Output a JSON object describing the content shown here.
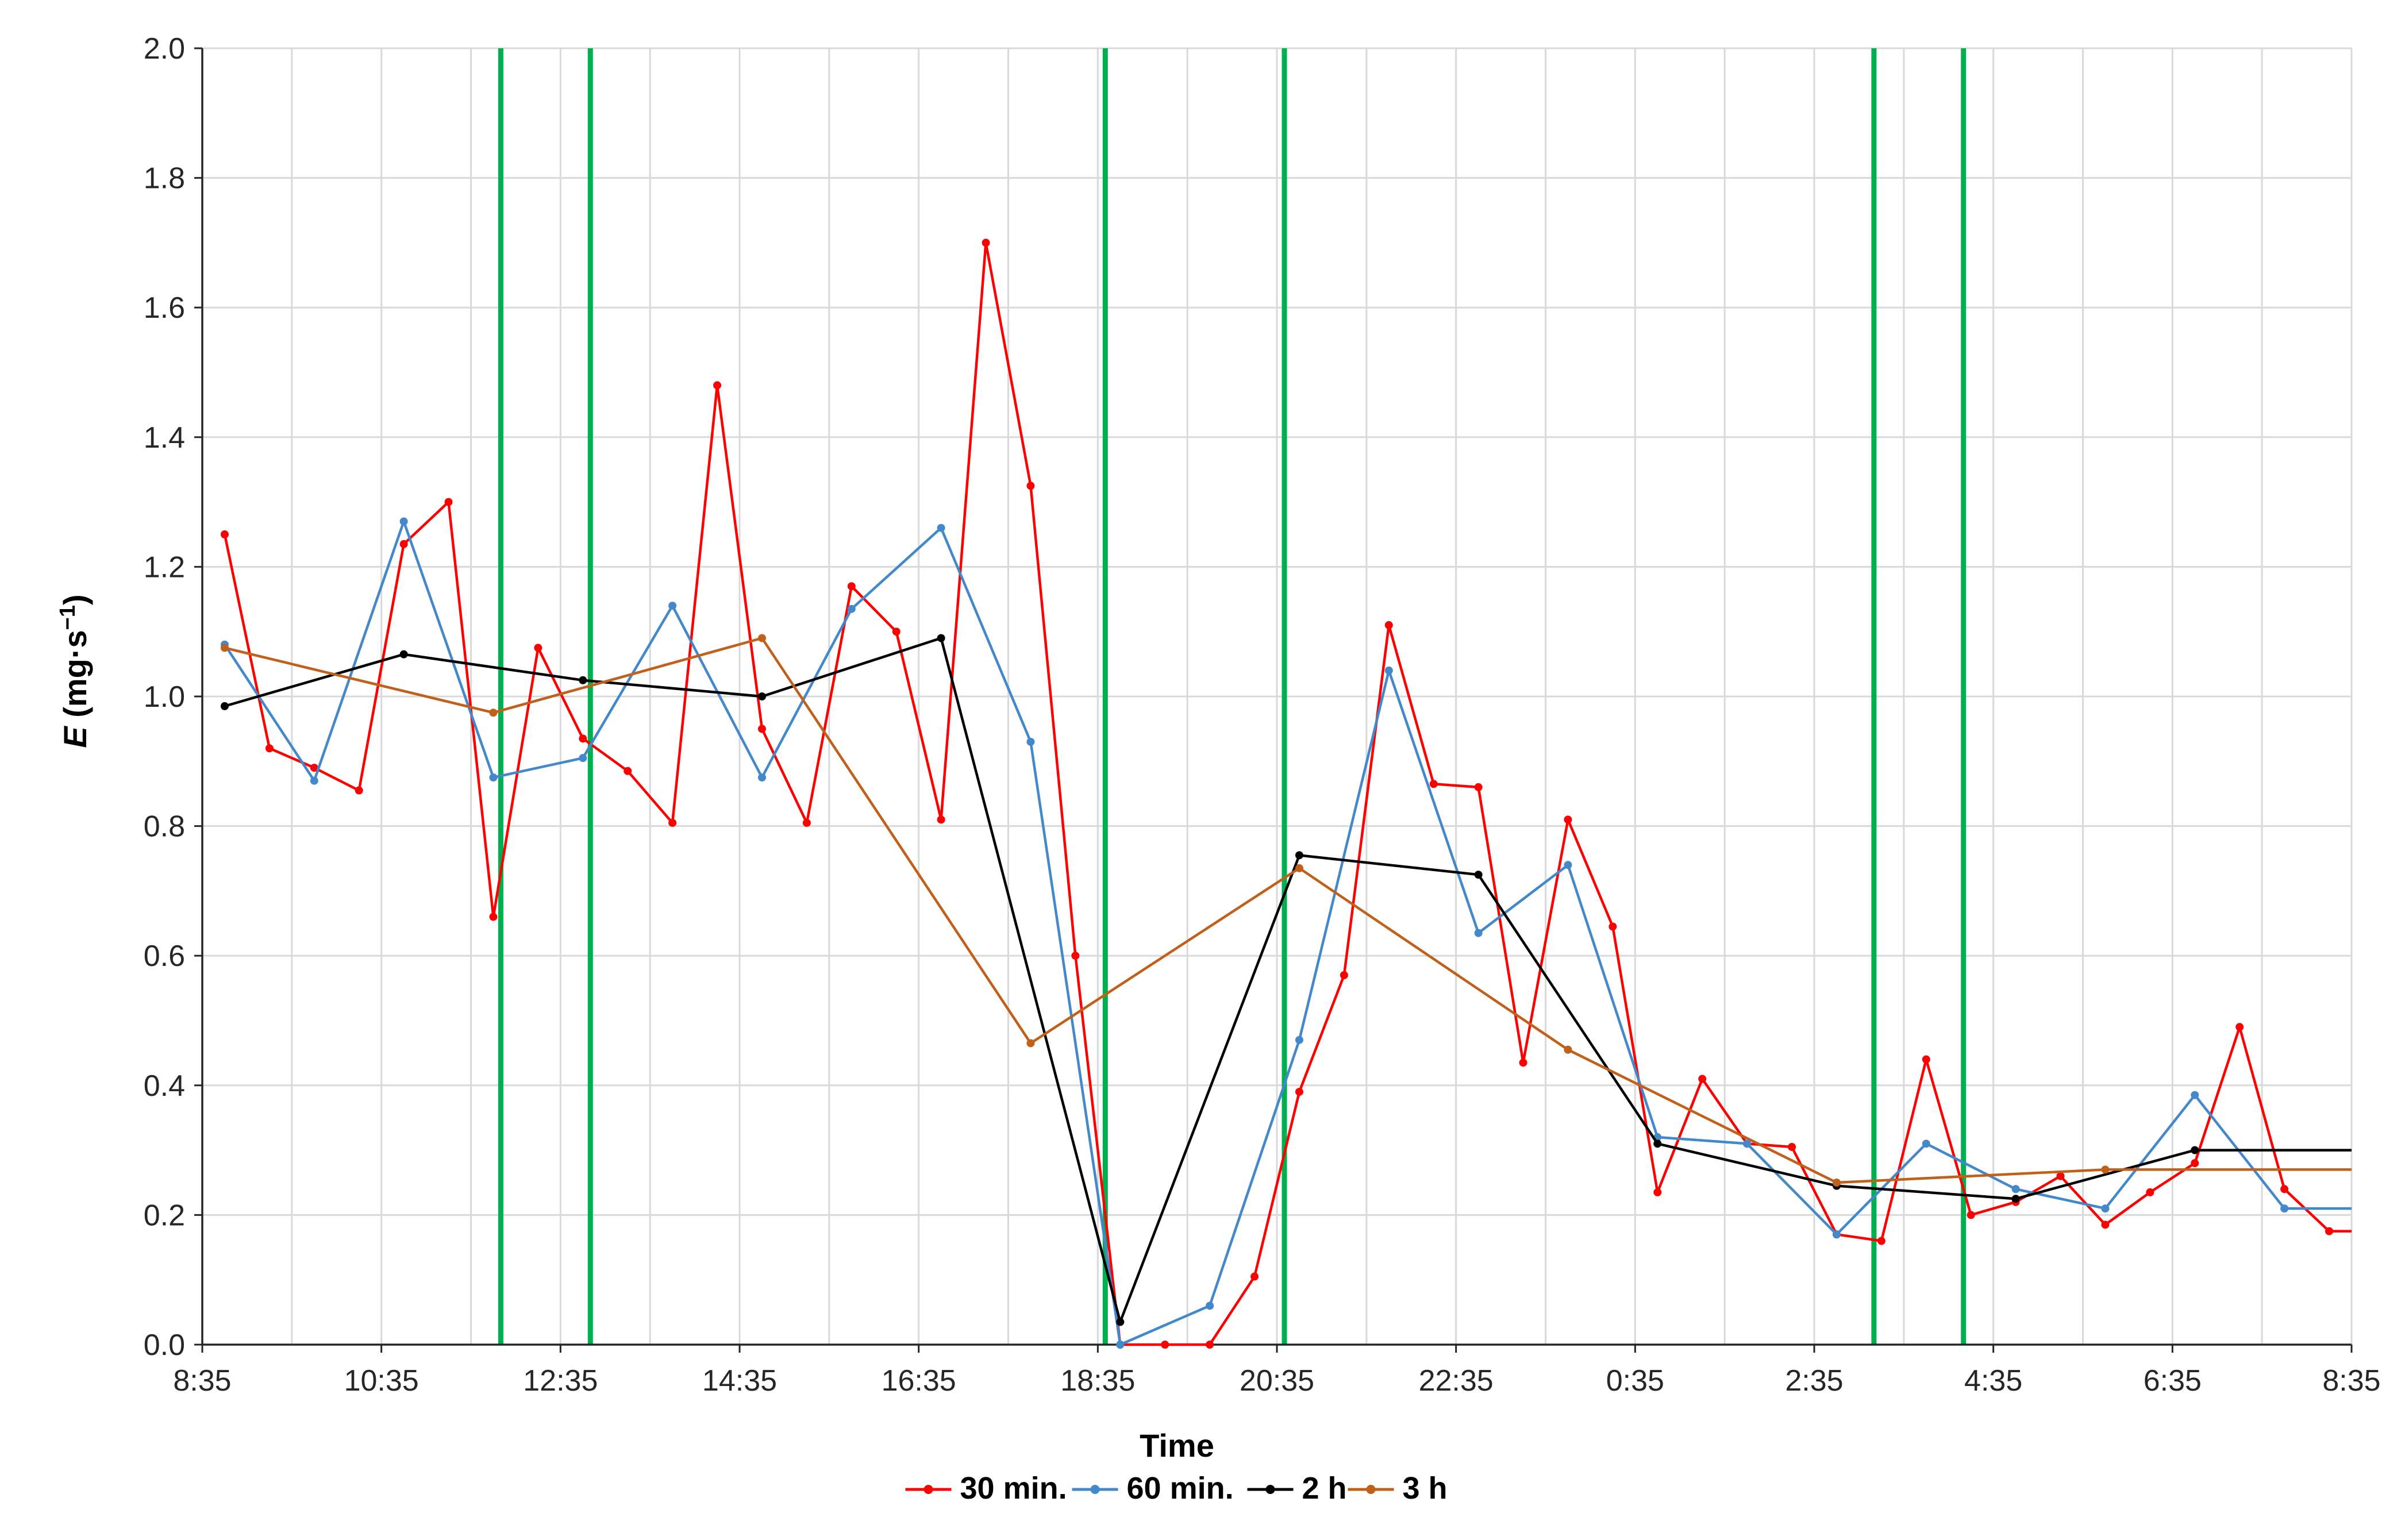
{
  "chart_data": {
    "type": "line",
    "xlabel": "Time",
    "ylabel": "E (mg·s⁻¹)",
    "ylabel_parts": {
      "var": "E",
      "unit_open": " (mg·s",
      "unit_sup": "−1",
      "unit_close": ")"
    },
    "x_tick_labels": [
      "8:35",
      "10:35",
      "12:35",
      "14:35",
      "16:35",
      "18:35",
      "20:35",
      "22:35",
      "0:35",
      "2:35",
      "4:35",
      "6:35",
      "8:35"
    ],
    "ylim": [
      0,
      2.0
    ],
    "y_tick_labels": [
      "0.0",
      "0.2",
      "0.4",
      "0.6",
      "0.8",
      "1.0",
      "1.2",
      "1.4",
      "1.6",
      "1.8",
      "2.0"
    ],
    "grid": true,
    "legend_position": "bottom",
    "vertical_markers": {
      "color": "#00b050",
      "positions": [
        "11:55",
        "12:55",
        "18:40",
        "20:40",
        "3:15",
        "4:15"
      ]
    },
    "series": [
      {
        "name": "30 min.",
        "color": "#ff0000",
        "points": [
          [
            "8:50",
            1.25
          ],
          [
            "9:20",
            0.92
          ],
          [
            "9:50",
            0.89
          ],
          [
            "10:20",
            0.855
          ],
          [
            "10:50",
            1.235
          ],
          [
            "11:20",
            1.3
          ],
          [
            "11:50",
            0.66
          ],
          [
            "12:20",
            1.075
          ],
          [
            "12:50",
            0.935
          ],
          [
            "13:20",
            0.885
          ],
          [
            "13:50",
            0.805
          ],
          [
            "14:20",
            1.48
          ],
          [
            "14:50",
            0.95
          ],
          [
            "15:20",
            0.805
          ],
          [
            "15:50",
            1.17
          ],
          [
            "16:20",
            1.1
          ],
          [
            "16:50",
            0.81
          ],
          [
            "17:20",
            1.7
          ],
          [
            "17:50",
            1.325
          ],
          [
            "18:20",
            0.6
          ],
          [
            "18:50",
            0.0
          ],
          [
            "19:20",
            0.0
          ],
          [
            "19:50",
            0.0
          ],
          [
            "20:20",
            0.105
          ],
          [
            "20:50",
            0.39
          ],
          [
            "21:20",
            0.57
          ],
          [
            "21:50",
            1.11
          ],
          [
            "22:20",
            0.865
          ],
          [
            "22:50",
            0.86
          ],
          [
            "23:20",
            0.435
          ],
          [
            "23:50",
            0.81
          ],
          [
            "0:20",
            0.645
          ],
          [
            "0:50",
            0.235
          ],
          [
            "1:20",
            0.41
          ],
          [
            "1:50",
            0.31
          ],
          [
            "2:20",
            0.305
          ],
          [
            "2:50",
            0.17
          ],
          [
            "3:20",
            0.16
          ],
          [
            "3:50",
            0.44
          ],
          [
            "4:20",
            0.2
          ],
          [
            "4:50",
            0.22
          ],
          [
            "5:20",
            0.26
          ],
          [
            "5:50",
            0.185
          ],
          [
            "6:20",
            0.235
          ],
          [
            "6:50",
            0.28
          ],
          [
            "7:20",
            0.49
          ],
          [
            "7:50",
            0.24
          ],
          [
            "8:20",
            0.175
          ],
          [
            "8:35",
            0.175
          ]
        ]
      },
      {
        "name": "60 min.",
        "color": "#4488cc",
        "points": [
          [
            "8:50",
            1.08
          ],
          [
            "9:50",
            0.87
          ],
          [
            "10:50",
            1.27
          ],
          [
            "11:50",
            0.875
          ],
          [
            "12:50",
            0.905
          ],
          [
            "13:50",
            1.14
          ],
          [
            "14:50",
            0.875
          ],
          [
            "15:50",
            1.135
          ],
          [
            "16:50",
            1.26
          ],
          [
            "17:50",
            0.93
          ],
          [
            "18:50",
            0.0
          ],
          [
            "19:50",
            0.06
          ],
          [
            "20:50",
            0.47
          ],
          [
            "21:50",
            1.04
          ],
          [
            "22:50",
            0.635
          ],
          [
            "23:50",
            0.74
          ],
          [
            "0:50",
            0.32
          ],
          [
            "1:50",
            0.31
          ],
          [
            "2:50",
            0.17
          ],
          [
            "3:50",
            0.31
          ],
          [
            "4:50",
            0.24
          ],
          [
            "5:50",
            0.21
          ],
          [
            "6:50",
            0.385
          ],
          [
            "7:50",
            0.21
          ],
          [
            "8:35",
            0.21
          ]
        ]
      },
      {
        "name": "2 h",
        "color": "#000000",
        "points": [
          [
            "8:50",
            0.985
          ],
          [
            "10:50",
            1.065
          ],
          [
            "12:50",
            1.025
          ],
          [
            "14:50",
            1.0
          ],
          [
            "16:50",
            1.09
          ],
          [
            "18:50",
            0.035
          ],
          [
            "20:50",
            0.755
          ],
          [
            "22:50",
            0.725
          ],
          [
            "0:50",
            0.31
          ],
          [
            "2:50",
            0.245
          ],
          [
            "4:50",
            0.225
          ],
          [
            "6:50",
            0.3
          ],
          [
            "8:35",
            0.3
          ]
        ]
      },
      {
        "name": "3 h",
        "color": "#c0601a",
        "points": [
          [
            "8:50",
            1.075
          ],
          [
            "11:50",
            0.975
          ],
          [
            "14:50",
            1.09
          ],
          [
            "17:50",
            0.465
          ],
          [
            "20:50",
            0.735
          ],
          [
            "23:50",
            0.455
          ],
          [
            "2:50",
            0.25
          ],
          [
            "5:50",
            0.27
          ],
          [
            "8:35",
            0.27
          ]
        ]
      }
    ]
  }
}
